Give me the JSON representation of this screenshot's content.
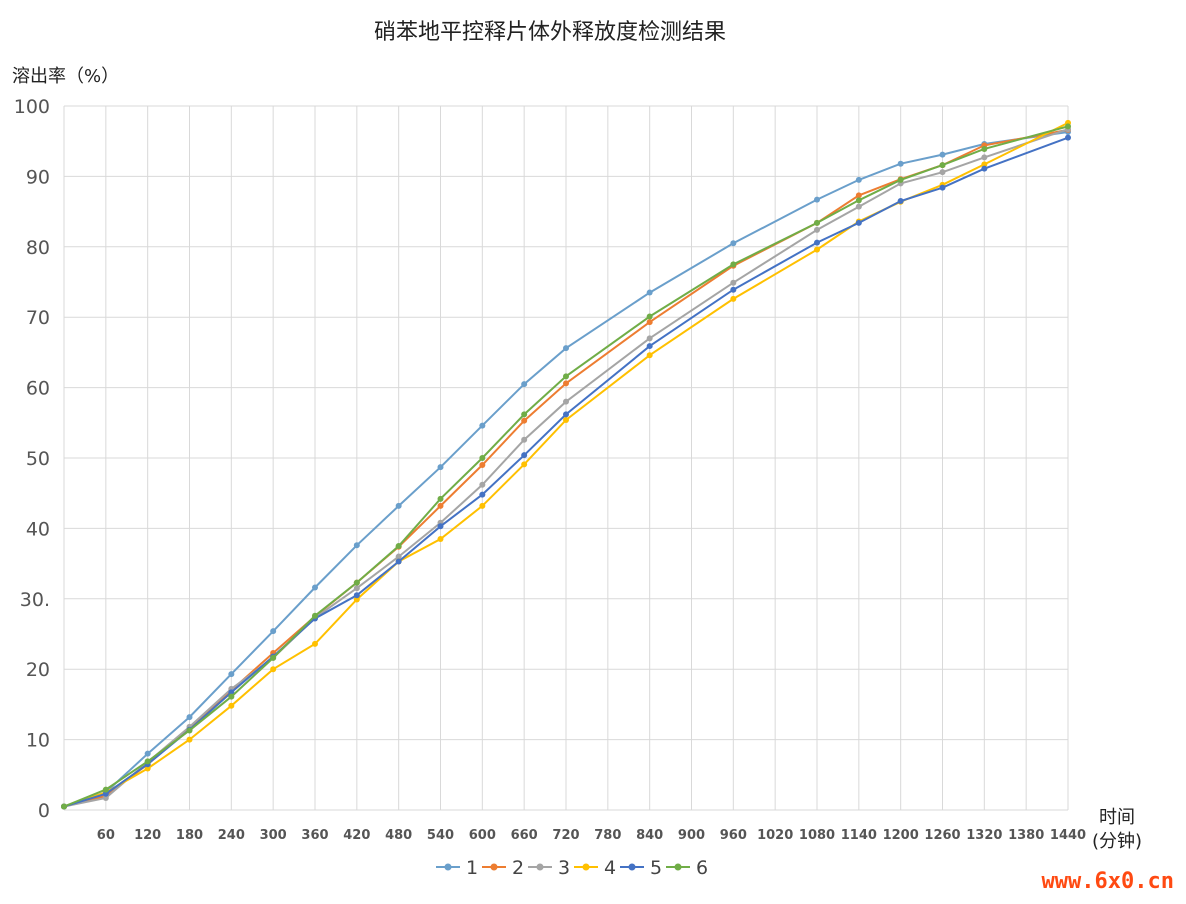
{
  "chart_data": {
    "type": "line",
    "title": "硝苯地平控释片体外释放度检测结果",
    "ylabel": "溶出率（%）",
    "xlabel_line1": "时间",
    "xlabel_line2": "(分钟)",
    "ylim": [
      0,
      100
    ],
    "xlim": [
      0,
      1440
    ],
    "y_ticks": [
      "0",
      "10",
      "20",
      "30.",
      "40",
      "50",
      "60",
      "70",
      "80",
      "90",
      "100"
    ],
    "x_ticks": [
      60,
      120,
      180,
      240,
      300,
      360,
      420,
      480,
      540,
      600,
      660,
      720,
      780,
      840,
      900,
      960,
      1020,
      1080,
      1140,
      1200,
      1260,
      1320,
      1380,
      1440
    ],
    "grid": true,
    "legend_position": "bottom",
    "x": [
      0,
      60,
      120,
      180,
      240,
      300,
      360,
      420,
      480,
      540,
      600,
      660,
      720,
      840,
      960,
      1080,
      1140,
      1200,
      1260,
      1320,
      1440
    ],
    "series": [
      {
        "name": "1",
        "color": "#6a9fcb",
        "values": [
          0.5,
          2.5,
          8.0,
          13.2,
          19.3,
          25.4,
          31.6,
          37.6,
          43.2,
          48.7,
          54.6,
          60.5,
          65.6,
          73.5,
          80.5,
          86.7,
          89.5,
          91.8,
          93.1,
          94.6,
          96.3
        ]
      },
      {
        "name": "2",
        "color": "#ed7d31",
        "values": [
          0.5,
          2.0,
          6.5,
          11.5,
          17.0,
          22.3,
          27.5,
          32.3,
          37.4,
          43.2,
          49.0,
          55.3,
          60.6,
          69.3,
          77.3,
          83.4,
          87.3,
          89.6,
          91.6,
          94.4,
          96.6
        ]
      },
      {
        "name": "3",
        "color": "#a5a5a5",
        "values": [
          0.5,
          1.7,
          6.8,
          11.8,
          17.2,
          21.6,
          27.3,
          31.5,
          36.0,
          40.8,
          46.2,
          52.6,
          58.0,
          67.0,
          74.9,
          82.4,
          85.7,
          89.0,
          90.6,
          92.7,
          96.7
        ]
      },
      {
        "name": "4",
        "color": "#ffc000",
        "values": [
          0.5,
          2.5,
          5.9,
          10.0,
          14.8,
          20.0,
          23.6,
          29.9,
          35.3,
          38.5,
          43.2,
          49.1,
          55.4,
          64.6,
          72.6,
          79.6,
          83.6,
          86.4,
          88.8,
          91.7,
          97.6
        ]
      },
      {
        "name": "5",
        "color": "#4472c4",
        "values": [
          0.5,
          2.3,
          6.5,
          11.4,
          16.7,
          21.8,
          27.2,
          30.5,
          35.3,
          40.3,
          44.8,
          50.4,
          56.2,
          65.9,
          73.9,
          80.6,
          83.4,
          86.5,
          88.4,
          91.1,
          95.5
        ]
      },
      {
        "name": "6",
        "color": "#70ad47",
        "values": [
          0.5,
          2.9,
          6.9,
          11.3,
          16.1,
          21.6,
          27.6,
          32.3,
          37.5,
          44.2,
          50.0,
          56.2,
          61.6,
          70.1,
          77.5,
          83.4,
          86.6,
          89.5,
          91.6,
          93.9,
          97.1
        ]
      }
    ]
  },
  "watermark": "www.6x0.cn"
}
